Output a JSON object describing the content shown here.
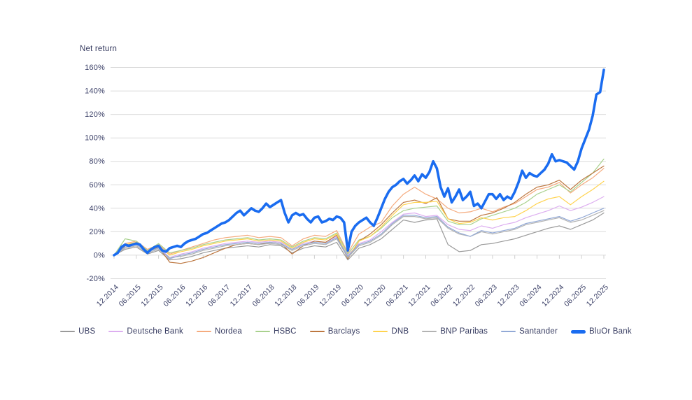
{
  "title": "Net return",
  "colors": {
    "text": "#363b60",
    "grid": "#dcdcdc",
    "background": "#ffffff",
    "accent": "#1a6cf0"
  },
  "chart_data": {
    "type": "line",
    "title": "Net return",
    "xlabel": "",
    "ylabel": "Net return",
    "grid": true,
    "legend_position": "bottom",
    "ylim": [
      -20,
      160
    ],
    "x_months_total": 132,
    "y_ticks": [
      {
        "label": "160%",
        "value": 160
      },
      {
        "label": "140%",
        "value": 140
      },
      {
        "label": "120%",
        "value": 120
      },
      {
        "label": "100%",
        "value": 100
      },
      {
        "label": "80%",
        "value": 80
      },
      {
        "label": "60%",
        "value": 60
      },
      {
        "label": "40%",
        "value": 40
      },
      {
        "label": "20%",
        "value": 20
      },
      {
        "label": "0%",
        "value": 0
      },
      {
        "label": "-20%",
        "value": -20
      }
    ],
    "x_tick_labels": [
      "12.2014",
      "06.2015",
      "12.2015",
      "06.2016",
      "12.2016",
      "06.2017",
      "12.2017",
      "06.2018",
      "12.2018",
      "06.2019",
      "12.2019",
      "06.2020",
      "12.2020",
      "06.2021",
      "12.2021",
      "06.2022",
      "12.2022",
      "06.2023",
      "12.2023",
      "06.2024",
      "12.2024",
      "06.2025",
      "12.2025"
    ],
    "series": [
      {
        "name": "UBS",
        "color": "#9a9a9a",
        "width": 1.2,
        "step_months": 3,
        "values": [
          0,
          5,
          7,
          1,
          4,
          -4,
          -3,
          -1,
          2,
          4,
          6,
          7,
          8,
          7,
          9,
          8,
          2,
          6,
          8,
          7,
          11,
          -4,
          6,
          9,
          14,
          22,
          30,
          28,
          30,
          31,
          9,
          3,
          4,
          9,
          10,
          12,
          14,
          17,
          20,
          23,
          25,
          22,
          26,
          30,
          36
        ]
      },
      {
        "name": "Deutsche Bank",
        "color": "#ddaef0",
        "width": 1.2,
        "step_months": 3,
        "values": [
          0,
          8,
          10,
          4,
          7,
          -2,
          1,
          3,
          6,
          8,
          10,
          11,
          12,
          11,
          12,
          11,
          6,
          10,
          12,
          11,
          16,
          0,
          10,
          13,
          20,
          28,
          35,
          36,
          33,
          34,
          26,
          22,
          21,
          25,
          23,
          26,
          28,
          32,
          35,
          38,
          42,
          38,
          41,
          45,
          50
        ]
      },
      {
        "name": "Nordea",
        "color": "#f5ab7e",
        "width": 1.2,
        "step_months": 3,
        "values": [
          0,
          10,
          12,
          5,
          9,
          1,
          4,
          7,
          10,
          13,
          15,
          16,
          17,
          15,
          16,
          15,
          8,
          14,
          17,
          16,
          21,
          2,
          18,
          24,
          28,
          42,
          52,
          58,
          52,
          48,
          40,
          36,
          37,
          40,
          37,
          41,
          44,
          50,
          56,
          58,
          62,
          53,
          60,
          66,
          74
        ]
      },
      {
        "name": "HSBC",
        "color": "#a9d18e",
        "width": 1.2,
        "step_months": 3,
        "values": [
          0,
          14,
          12,
          4,
          10,
          2,
          4,
          6,
          9,
          11,
          13,
          14,
          15,
          13,
          14,
          13,
          7,
          12,
          15,
          14,
          19,
          1,
          13,
          16,
          23,
          32,
          38,
          40,
          41,
          42,
          29,
          26,
          26,
          31,
          34,
          37,
          40,
          45,
          52,
          56,
          60,
          54,
          62,
          70,
          82
        ]
      },
      {
        "name": "Barclays",
        "color": "#bd7740",
        "width": 1.2,
        "step_months": 3,
        "values": [
          0,
          8,
          11,
          3,
          7,
          -6,
          -7,
          -5,
          -2,
          2,
          6,
          9,
          10,
          9,
          11,
          10,
          1,
          8,
          12,
          11,
          17,
          -3,
          12,
          18,
          26,
          36,
          45,
          47,
          44,
          49,
          31,
          29,
          29,
          34,
          36,
          40,
          45,
          52,
          58,
          60,
          64,
          56,
          64,
          70,
          76
        ]
      },
      {
        "name": "DNB",
        "color": "#ffd34f",
        "width": 1.2,
        "step_months": 3,
        "values": [
          0,
          9,
          11,
          2,
          8,
          0,
          3,
          5,
          8,
          10,
          12,
          13,
          14,
          12,
          13,
          12,
          6,
          11,
          14,
          13,
          18,
          -2,
          12,
          16,
          24,
          34,
          43,
          45,
          45,
          46,
          31,
          27,
          28,
          32,
          30,
          32,
          33,
          38,
          44,
          48,
          50,
          43,
          50,
          56,
          63
        ]
      },
      {
        "name": "BNP Paribas",
        "color": "#b3b3b3",
        "width": 1.2,
        "step_months": 3,
        "values": [
          0,
          6,
          8,
          2,
          5,
          -2,
          -1,
          1,
          4,
          6,
          8,
          9,
          10,
          9,
          10,
          9,
          4,
          8,
          10,
          9,
          14,
          -2,
          8,
          11,
          17,
          26,
          33,
          33,
          31,
          32,
          23,
          18,
          16,
          20,
          18,
          20,
          22,
          26,
          28,
          30,
          32,
          28,
          30,
          34,
          38
        ]
      },
      {
        "name": "Santander",
        "color": "#92a9d6",
        "width": 1.2,
        "step_months": 3,
        "values": [
          0,
          7,
          9,
          3,
          6,
          -3,
          0,
          2,
          5,
          7,
          9,
          10,
          11,
          10,
          11,
          10,
          5,
          9,
          11,
          10,
          15,
          -1,
          9,
          12,
          18,
          27,
          34,
          34,
          32,
          33,
          24,
          19,
          16,
          21,
          19,
          21,
          23,
          27,
          29,
          31,
          33,
          29,
          32,
          36,
          40
        ]
      },
      {
        "name": "BluOr Bank",
        "color": "#1a6cf0",
        "width": 3.6,
        "step_months": 1,
        "values": [
          0,
          2,
          7,
          9,
          8,
          9,
          10,
          9,
          5,
          2,
          5,
          7,
          8,
          4,
          3,
          6,
          7,
          8,
          7,
          10,
          12,
          13,
          14,
          16,
          18,
          19,
          21,
          23,
          25,
          27,
          28,
          30,
          33,
          36,
          38,
          34,
          37,
          40,
          38,
          37,
          40,
          44,
          41,
          43,
          45,
          47,
          36,
          28,
          34,
          36,
          34,
          35,
          31,
          28,
          32,
          33,
          28,
          29,
          31,
          30,
          33,
          32,
          28,
          4,
          20,
          25,
          28,
          30,
          32,
          28,
          25,
          32,
          40,
          48,
          54,
          58,
          60,
          63,
          65,
          61,
          64,
          68,
          63,
          69,
          66,
          71,
          80,
          74,
          58,
          50,
          57,
          45,
          50,
          56,
          47,
          50,
          54,
          42,
          44,
          40,
          46,
          52,
          52,
          48,
          52,
          47,
          50,
          48,
          54,
          62,
          72,
          66,
          70,
          68,
          67,
          70,
          73,
          78,
          86,
          80,
          81,
          80,
          79,
          76,
          73,
          80,
          91,
          99,
          107,
          119,
          137,
          139,
          158
        ]
      }
    ]
  }
}
